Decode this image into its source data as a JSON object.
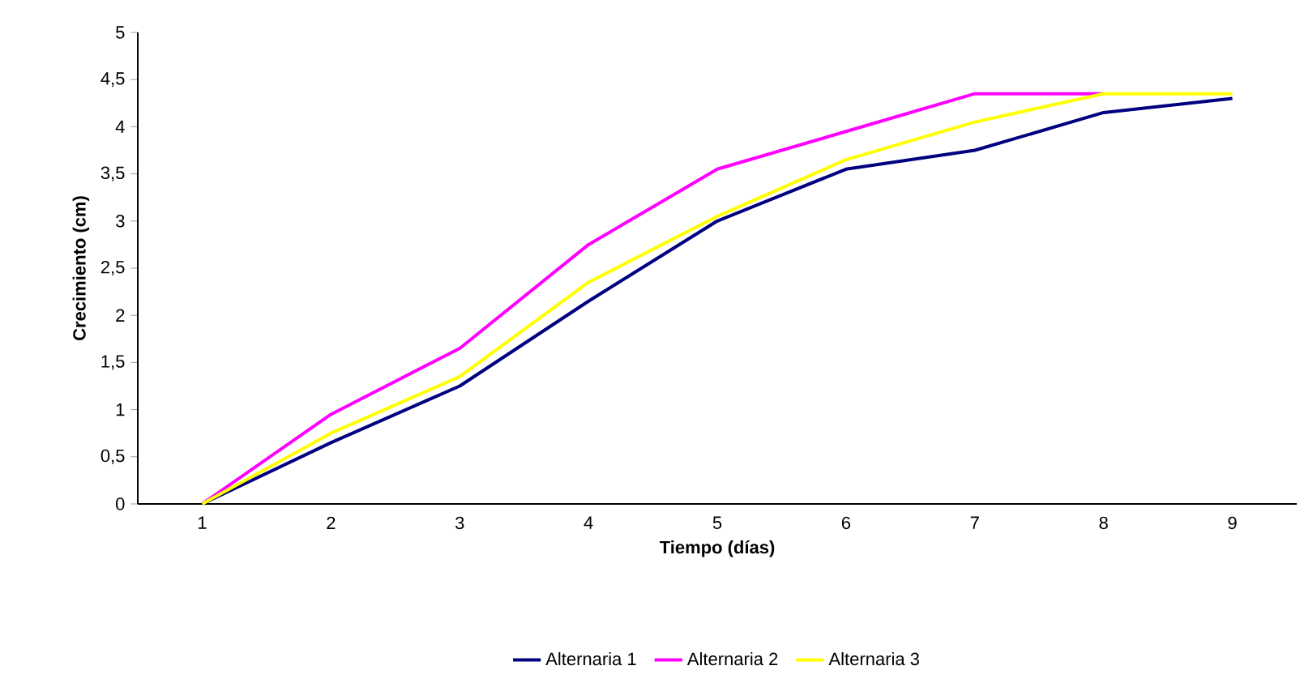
{
  "chart_data": {
    "type": "line",
    "xlabel": "Tiempo (días)",
    "ylabel": "Crecimiento (cm)",
    "categories": [
      "1",
      "2",
      "3",
      "4",
      "5",
      "6",
      "7",
      "8",
      "9"
    ],
    "ylim": [
      0,
      5
    ],
    "yticks": [
      0,
      {
        "value": 0.5,
        "label": "0,5"
      },
      1,
      {
        "value": 1.5,
        "label": "1,5"
      },
      2,
      {
        "value": 2.5,
        "label": "2,5"
      },
      3,
      {
        "value": 3.5,
        "label": "3,5"
      },
      4,
      {
        "value": 4.5,
        "label": "4,5"
      },
      5
    ],
    "grid": false,
    "legend": "bottom",
    "marker": "none",
    "line_style": "solid",
    "series": [
      {
        "name": "Alternaria 1",
        "color": "#000080",
        "values": [
          0,
          0.65,
          1.25,
          2.15,
          3.0,
          3.55,
          3.75,
          4.15,
          4.3
        ]
      },
      {
        "name": "Alternaria 2",
        "color": "#ff00ff",
        "values": [
          0,
          0.95,
          1.65,
          2.75,
          3.55,
          3.95,
          4.35,
          4.35,
          null
        ]
      },
      {
        "name": "Alternaria 3",
        "color": "#ffff00",
        "values": [
          0,
          0.75,
          1.35,
          2.35,
          3.05,
          3.65,
          4.05,
          4.35,
          4.35
        ]
      }
    ]
  }
}
